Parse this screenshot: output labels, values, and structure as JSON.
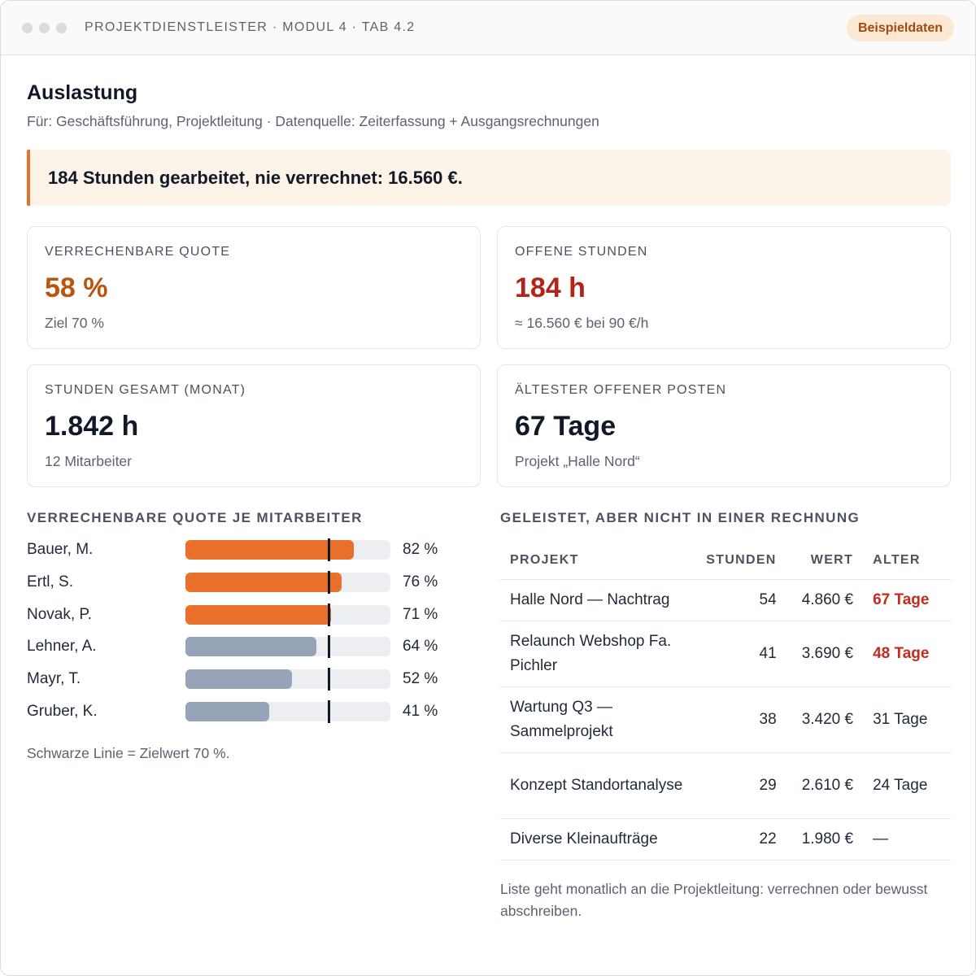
{
  "window": {
    "breadcrumb": "PROJEKTDIENSTLEISTER · MODUL 4 · TAB 4.2",
    "badge": "Beispieldaten"
  },
  "page": {
    "title": "Auslastung",
    "subtitle": "Für: Geschäftsführung, Projektleitung · Datenquelle: Zeiterfassung + Ausgangsrechnungen",
    "alert": "184 Stunden gearbeitet, nie verrechnet: 16.560 €."
  },
  "kpis": [
    {
      "label": "VERRECHENBARE QUOTE",
      "value": "58 %",
      "note": "Ziel 70 %",
      "color": "#b8560f"
    },
    {
      "label": "OFFENE STUNDEN",
      "value": "184 h",
      "note": "≈ 16.560 € bei 90 €/h",
      "color": "#b42318"
    },
    {
      "label": "STUNDEN GESAMT (MONAT)",
      "value": "1.842 h",
      "note": "12 Mitarbeiter",
      "color": "#111827"
    },
    {
      "label": "ÄLTESTER OFFENER POSTEN",
      "value": "67 Tage",
      "note": "Projekt „Halle Nord“",
      "color": "#111827"
    }
  ],
  "quota": {
    "heading": "VERRECHENBARE QUOTE JE MITARBEITER",
    "target_percent": 70,
    "colors": {
      "above": "#e8702a",
      "below": "#97a3b6"
    },
    "rows": [
      {
        "name": "Bauer, M.",
        "percent": 82,
        "label": "82 %"
      },
      {
        "name": "Ertl, S.",
        "percent": 76,
        "label": "76 %"
      },
      {
        "name": "Novak, P.",
        "percent": 71,
        "label": "71 %"
      },
      {
        "name": "Lehner, A.",
        "percent": 64,
        "label": "64 %"
      },
      {
        "name": "Mayr, T.",
        "percent": 52,
        "label": "52 %"
      },
      {
        "name": "Gruber, K.",
        "percent": 41,
        "label": "41 %"
      }
    ],
    "footnote": "Schwarze Linie = Zielwert 70 %."
  },
  "unbilled": {
    "heading": "GELEISTET, ABER NICHT IN EINER RECHNUNG",
    "columns": [
      "PROJEKT",
      "STUNDEN",
      "WERT",
      "ALTER"
    ],
    "rows": [
      {
        "project": "Halle Nord — Nachtrag",
        "hours": "54",
        "value": "4.860 €",
        "age": "67 Tage",
        "warn": true
      },
      {
        "project": "Relaunch Webshop Fa. Pichler",
        "hours": "41",
        "value": "3.690 €",
        "age": "48 Tage",
        "warn": true
      },
      {
        "project": "Wartung Q3 — Sammelprojekt",
        "hours": "38",
        "value": "3.420 €",
        "age": "31 Tage",
        "warn": false
      },
      {
        "project": "Konzept Standortanalyse",
        "hours": "29",
        "value": "2.610 €",
        "age": "24 Tage",
        "warn": false
      },
      {
        "project": "Diverse Kleinaufträge",
        "hours": "22",
        "value": "1.980 €",
        "age": "—",
        "warn": false
      }
    ],
    "footnote": "Liste geht monatlich an die Projektleitung: verrechnen oder bewusst abschreiben."
  }
}
